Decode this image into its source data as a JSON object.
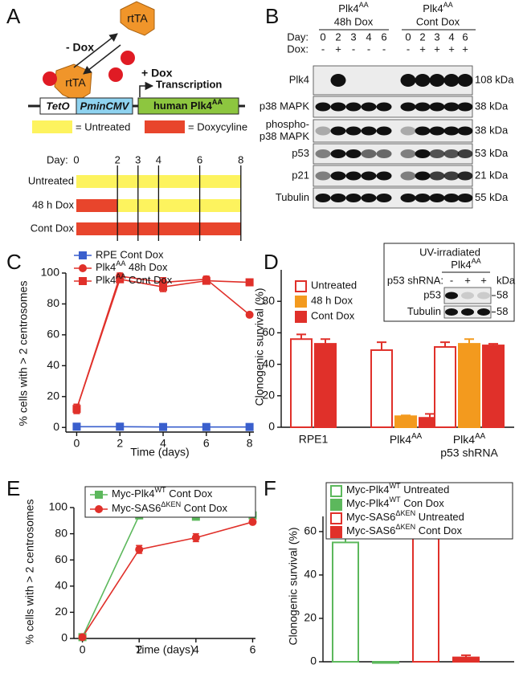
{
  "panel_labels": [
    "A",
    "B",
    "C",
    "D",
    "E",
    "F"
  ],
  "schematic": {
    "rtta": [
      "rtTA",
      "rtTA"
    ],
    "minus_dox": "- Dox",
    "plus_dox": "+ Dox",
    "transcription": "Transcription",
    "teto": "TetO",
    "pmincmv": "PminCMV",
    "gene": "human Plk4AA",
    "legend": [
      "= Untreated",
      "= Doxycyline"
    ],
    "day_label": "Day:",
    "days": [
      0,
      2,
      3,
      4,
      6,
      8
    ],
    "rows": [
      "Untreated",
      "48 h Dox",
      "Cont Dox"
    ]
  },
  "blot": {
    "groups": [
      [
        "Plk4AA",
        "48h Dox"
      ],
      [
        "Plk4AA",
        "Cont Dox"
      ]
    ],
    "day_label": "Day:",
    "dox_label": "Dox:",
    "days": [
      0,
      2,
      3,
      4,
      6,
      0,
      2,
      3,
      4,
      6
    ],
    "dox": [
      "-",
      "+",
      "-",
      "-",
      "-",
      "-",
      "+",
      "+",
      "+",
      "+"
    ],
    "rows": [
      {
        "name": [
          "Plk4"
        ],
        "kda": "108 kDa"
      },
      {
        "name": [
          "p38 MAPK"
        ],
        "kda": "38 kDa"
      },
      {
        "name": [
          "phospho-",
          "p38 MAPK"
        ],
        "kda": "38 kDa"
      },
      {
        "name": [
          "p53"
        ],
        "kda": "53 kDa"
      },
      {
        "name": [
          "p21"
        ],
        "kda": "21 kDa"
      },
      {
        "name": [
          "Tubulin"
        ],
        "kda": "55 kDa"
      }
    ]
  },
  "chart_data": [
    {
      "type": "line",
      "xlabel": "Time (days)",
      "ylabel": "% cells with > 2 centrosomes",
      "x": [
        0,
        2,
        4,
        6,
        8
      ],
      "xlim": [
        -0.5,
        8.2
      ],
      "xticks": [
        0,
        2,
        4,
        6,
        8
      ],
      "ylim": [
        -3,
        100
      ],
      "yticks": [
        0,
        20,
        40,
        60,
        80,
        100
      ],
      "legend": "top-left",
      "series": [
        {
          "name": "RPE Cont Dox",
          "color": "#3a5fcd",
          "marker": "square",
          "values": [
            0.5,
            0.5,
            0.3,
            0.3,
            0.3
          ]
        },
        {
          "name": "Plk4AA 48h Dox",
          "color": "#e0302a",
          "marker": "circle",
          "values": [
            12,
            98,
            94,
            96,
            73
          ],
          "errors": [
            3,
            2,
            3,
            2,
            1
          ]
        },
        {
          "name": "Plk4AA Cont Dox",
          "color": "#e0302a",
          "marker": "square",
          "values": [
            12,
            96,
            91,
            95,
            94
          ],
          "errors": [
            3,
            2,
            3,
            1,
            2
          ]
        }
      ]
    },
    {
      "type": "bar",
      "ylabel": "Clonogenic survival (%)",
      "categories": [
        [
          "RPE1"
        ],
        [
          "Plk4AA"
        ],
        [
          "Plk4AA",
          "p53 shRNA"
        ]
      ],
      "ylim": [
        0,
        100
      ],
      "yticks": [
        0,
        20,
        40,
        60,
        80
      ],
      "legend": "top-left",
      "series": [
        {
          "name": "Untreated",
          "color": "#e0302a",
          "filled": false,
          "values": [
            56,
            49,
            51
          ],
          "errors": [
            3,
            5,
            3
          ]
        },
        {
          "name": "48 h Dox",
          "color": "#f39a1e",
          "filled": true,
          "values": [
            null,
            7,
            53
          ],
          "errors": [
            null,
            0.5,
            3
          ]
        },
        {
          "name": "Cont Dox",
          "color": "#e0302a",
          "filled": true,
          "values": [
            53,
            6,
            52
          ],
          "errors": [
            3,
            2.5,
            1
          ]
        }
      ],
      "inset": {
        "title": "UV-irradiated",
        "line": "Plk4AA",
        "shrna_label": "p53 shRNA:",
        "lanes": [
          "-",
          "+",
          "+"
        ],
        "kda": "kDa",
        "rows": [
          {
            "name": "p53",
            "kda": 58
          },
          {
            "name": "Tubulin",
            "kda": 58
          }
        ]
      }
    },
    {
      "type": "line",
      "xlabel": "Time (days)",
      "ylabel": "% cells with > 2 centrosomes",
      "x": [
        0,
        2,
        4,
        6
      ],
      "xlim": [
        -0.3,
        6.1
      ],
      "xticks": [
        0,
        2,
        4,
        6
      ],
      "ylim": [
        0,
        100
      ],
      "yticks": [
        0,
        20,
        40,
        60,
        80,
        100
      ],
      "legend": "top-left",
      "series": [
        {
          "name": "Myc-Plk4WT Cont Dox",
          "color": "#5cb85c",
          "marker": "square",
          "values": [
            1,
            94,
            93,
            94
          ]
        },
        {
          "name": "Myc-SAS6ΔKEN Cont Dox",
          "color": "#e0302a",
          "marker": "circle",
          "values": [
            1,
            68,
            77,
            89
          ],
          "errors": [
            0,
            3,
            3,
            1
          ]
        }
      ]
    },
    {
      "type": "bar",
      "ylabel": "Clonogenic survival (%)",
      "categories": [
        null
      ],
      "ylim": [
        0,
        67
      ],
      "yticks": [
        0,
        20,
        40,
        60
      ],
      "legend": "top-left",
      "series": [
        {
          "name": "Myc-Plk4WT Untreated",
          "color": "#5cb85c",
          "filled": false,
          "values": [
            55
          ],
          "errors": [
            2
          ]
        },
        {
          "name": "Myc-Plk4WT Con Dox",
          "color": "#5cb85c",
          "filled": true,
          "values": [
            0
          ],
          "errors": [
            0
          ]
        },
        {
          "name": "Myc-SAS6ΔKEN Untreated",
          "color": "#e0302a",
          "filled": false,
          "values": [
            60
          ],
          "errors": [
            3
          ]
        },
        {
          "name": "Myc-SAS6ΔKEN Cont Dox",
          "color": "#e0302a",
          "filled": true,
          "values": [
            2
          ],
          "errors": [
            1
          ]
        }
      ]
    }
  ]
}
